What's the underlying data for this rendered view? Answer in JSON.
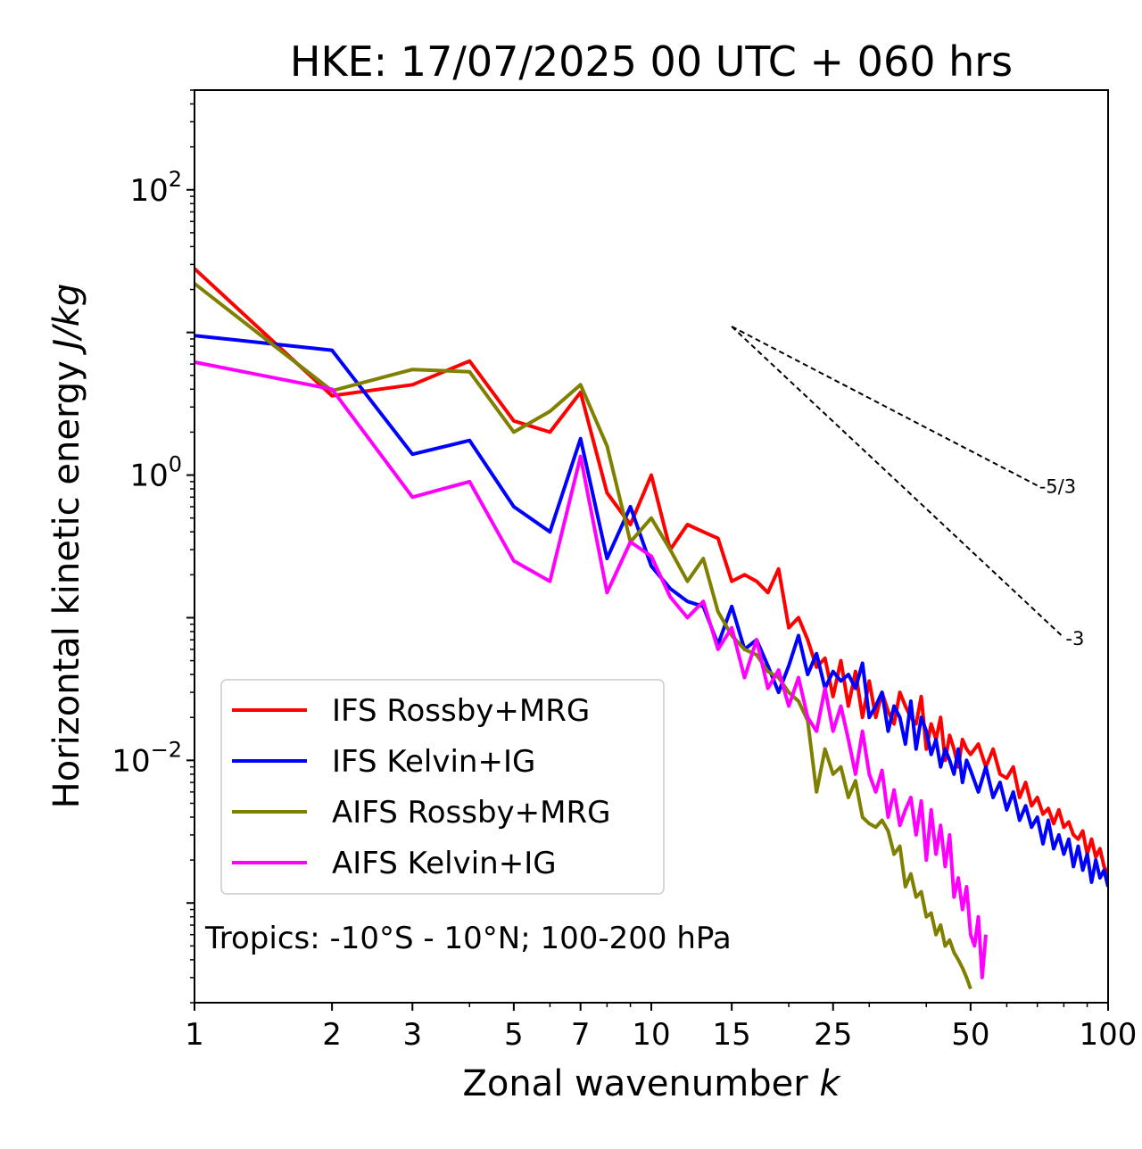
{
  "chart_data": {
    "type": "line",
    "title": "HKE: 17/07/2025 00 UTC + 060 hrs",
    "xlabel": "Zonal wavenumber",
    "xlabel_var": "k",
    "ylabel": "Horizontal kinetic energy",
    "ylabel_unit": "J/kg",
    "xscale": "log",
    "yscale": "log",
    "xlim": [
      1,
      100
    ],
    "ylim": [
      0.0002,
      500
    ],
    "xticks": [
      1,
      2,
      3,
      5,
      7,
      10,
      15,
      25,
      50,
      100
    ],
    "xtick_labels": [
      "1",
      "2",
      "3",
      "5",
      "7",
      "10",
      "15",
      "25",
      "50",
      "100"
    ],
    "yticks": [
      {
        "value": 0.01,
        "base": "10",
        "exp": "−2"
      },
      {
        "value": 1,
        "base": "10",
        "exp": "0"
      },
      {
        "value": 100,
        "base": "10",
        "exp": "2"
      }
    ],
    "grid": false,
    "legend_position": "lower-left",
    "annotation": "Tropics: -10°S - 10°N; 100-200 hPa",
    "reference_lines": [
      {
        "label": "-5/3",
        "slope": -1.6667,
        "x_start": 15,
        "x_end": 70,
        "y_start": 11,
        "label_x": 70
      },
      {
        "label": "-3",
        "slope": -3,
        "x_start": 15,
        "x_end": 80,
        "y_start": 11,
        "label_x": 80
      }
    ],
    "series": [
      {
        "name": "IFS Rossby+MRG",
        "color": "#ff0000",
        "x": [
          1,
          2,
          3,
          4,
          5,
          6,
          7,
          8,
          9,
          10,
          11,
          12,
          13,
          14,
          15,
          16,
          17,
          18,
          19,
          20,
          21,
          22,
          23,
          24,
          25,
          26,
          27,
          28,
          29,
          30,
          31,
          32,
          33,
          34,
          35,
          36,
          37,
          38,
          39,
          40,
          41,
          42,
          43,
          44,
          45,
          46,
          47,
          48,
          49,
          50,
          52,
          54,
          56,
          58,
          60,
          62,
          64,
          66,
          68,
          70,
          72,
          74,
          76,
          78,
          80,
          82,
          84,
          86,
          88,
          90,
          92,
          94,
          96,
          98,
          100
        ],
        "y": [
          28,
          3.6,
          4.3,
          6.3,
          2.4,
          2,
          3.8,
          0.75,
          0.45,
          1.0,
          0.3,
          0.45,
          0.4,
          0.36,
          0.18,
          0.2,
          0.18,
          0.15,
          0.22,
          0.085,
          0.1,
          0.07,
          0.045,
          0.052,
          0.028,
          0.05,
          0.024,
          0.042,
          0.02,
          0.036,
          0.02,
          0.03,
          0.022,
          0.018,
          0.03,
          0.024,
          0.02,
          0.018,
          0.028,
          0.012,
          0.018,
          0.014,
          0.02,
          0.01,
          0.015,
          0.012,
          0.009,
          0.014,
          0.012,
          0.011,
          0.013,
          0.009,
          0.012,
          0.008,
          0.0075,
          0.009,
          0.0055,
          0.007,
          0.0048,
          0.0055,
          0.0042,
          0.0046,
          0.0036,
          0.0045,
          0.0034,
          0.0037,
          0.003,
          0.0028,
          0.0032,
          0.0022,
          0.0028,
          0.0021,
          0.0024,
          0.0018,
          0.0016
        ]
      },
      {
        "name": "IFS Kelvin+IG",
        "color": "#0000ff",
        "x": [
          1,
          2,
          3,
          4,
          5,
          6,
          7,
          8,
          9,
          10,
          11,
          12,
          13,
          14,
          15,
          16,
          17,
          18,
          19,
          20,
          21,
          22,
          23,
          24,
          25,
          26,
          27,
          28,
          29,
          30,
          31,
          32,
          33,
          34,
          35,
          36,
          37,
          38,
          39,
          40,
          41,
          42,
          43,
          44,
          45,
          46,
          47,
          48,
          49,
          50,
          52,
          54,
          56,
          58,
          60,
          62,
          64,
          66,
          68,
          70,
          72,
          74,
          76,
          78,
          80,
          82,
          84,
          86,
          88,
          90,
          92,
          94,
          96,
          98,
          100
        ],
        "y": [
          9.5,
          7.5,
          1.4,
          1.75,
          0.6,
          0.4,
          1.8,
          0.26,
          0.6,
          0.23,
          0.16,
          0.13,
          0.12,
          0.065,
          0.12,
          0.06,
          0.07,
          0.046,
          0.03,
          0.046,
          0.075,
          0.04,
          0.056,
          0.032,
          0.042,
          0.036,
          0.04,
          0.032,
          0.048,
          0.02,
          0.024,
          0.03,
          0.016,
          0.024,
          0.02,
          0.013,
          0.026,
          0.012,
          0.02,
          0.016,
          0.011,
          0.014,
          0.009,
          0.012,
          0.01,
          0.008,
          0.012,
          0.007,
          0.01,
          0.0085,
          0.006,
          0.009,
          0.0055,
          0.007,
          0.0045,
          0.006,
          0.0038,
          0.0048,
          0.0034,
          0.004,
          0.0026,
          0.0038,
          0.0024,
          0.003,
          0.0022,
          0.0028,
          0.0018,
          0.0025,
          0.0017,
          0.0022,
          0.0014,
          0.002,
          0.0015,
          0.0017,
          0.0013
        ]
      },
      {
        "name": "AIFS Rossby+MRG",
        "color": "#808000",
        "x": [
          1,
          2,
          3,
          4,
          5,
          6,
          7,
          8,
          9,
          10,
          11,
          12,
          13,
          14,
          15,
          16,
          17,
          18,
          19,
          20,
          21,
          22,
          23,
          24,
          25,
          26,
          27,
          28,
          29,
          30,
          31,
          32,
          33,
          34,
          35,
          36,
          37,
          38,
          39,
          40,
          41,
          42,
          43,
          44,
          45,
          46,
          47,
          48,
          49,
          50
        ],
        "y": [
          22,
          3.9,
          5.5,
          5.3,
          2.0,
          2.8,
          4.3,
          1.6,
          0.34,
          0.5,
          0.3,
          0.18,
          0.26,
          0.11,
          0.075,
          0.06,
          0.055,
          0.042,
          0.038,
          0.03,
          0.026,
          0.019,
          0.006,
          0.012,
          0.008,
          0.009,
          0.0055,
          0.0072,
          0.004,
          0.0036,
          0.0034,
          0.0038,
          0.0032,
          0.0022,
          0.0025,
          0.0013,
          0.0016,
          0.0011,
          0.0012,
          0.0008,
          0.00085,
          0.0006,
          0.0007,
          0.0005,
          0.00055,
          0.00045,
          0.0004,
          0.00035,
          0.0003,
          0.00025
        ]
      },
      {
        "name": "AIFS Kelvin+IG",
        "color": "#ff00ff",
        "x": [
          1,
          2,
          3,
          4,
          5,
          6,
          7,
          8,
          9,
          10,
          11,
          12,
          13,
          14,
          15,
          16,
          17,
          18,
          19,
          20,
          21,
          22,
          23,
          24,
          25,
          26,
          27,
          28,
          29,
          30,
          31,
          32,
          33,
          34,
          35,
          36,
          37,
          38,
          39,
          40,
          41,
          42,
          43,
          44,
          45,
          46,
          47,
          48,
          49,
          50,
          51,
          52,
          53,
          54
        ],
        "y": [
          6.2,
          4.0,
          0.7,
          0.9,
          0.25,
          0.18,
          1.35,
          0.15,
          0.34,
          0.27,
          0.14,
          0.1,
          0.13,
          0.06,
          0.085,
          0.038,
          0.07,
          0.032,
          0.043,
          0.024,
          0.038,
          0.02,
          0.016,
          0.032,
          0.016,
          0.024,
          0.014,
          0.008,
          0.016,
          0.008,
          0.006,
          0.0085,
          0.004,
          0.0062,
          0.0035,
          0.0045,
          0.0055,
          0.003,
          0.0052,
          0.002,
          0.0045,
          0.0022,
          0.0035,
          0.0018,
          0.003,
          0.0011,
          0.0015,
          0.0009,
          0.0013,
          0.0006,
          0.0005,
          0.0008,
          0.0003,
          0.0006
        ]
      }
    ]
  }
}
